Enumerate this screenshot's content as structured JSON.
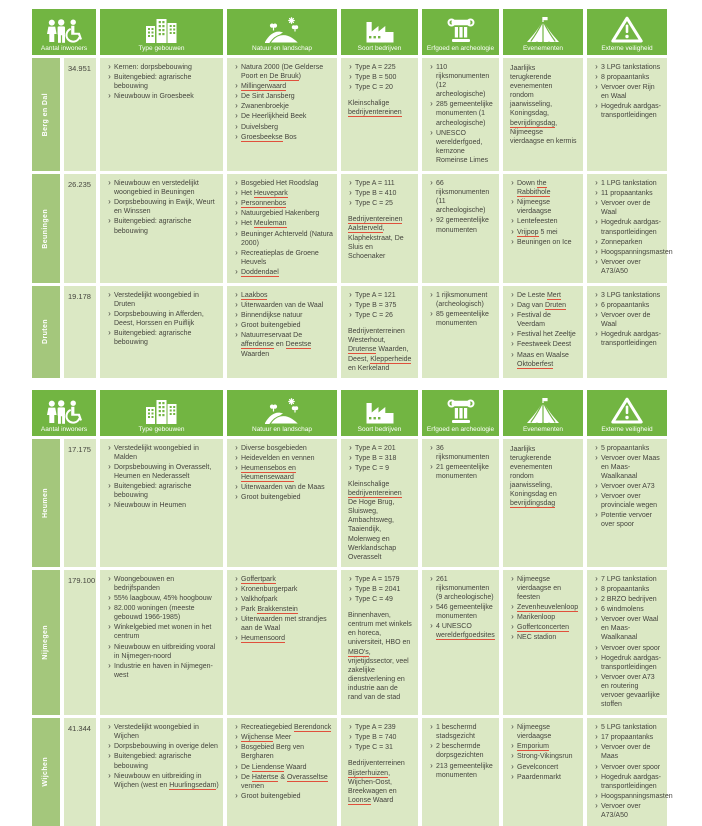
{
  "theme": {
    "header_green": "#72b542",
    "strip_green": "#a4c77c",
    "cell_green": "#dbe8c4",
    "text_color": "#45453e",
    "spellcheck_underline_red": "#e0503c"
  },
  "bullet_char": "›",
  "columns": [
    {
      "id": "aantal-inwoners",
      "label": "Aantal inwoners",
      "icon": "people-icon"
    },
    {
      "id": "type-gebouwen",
      "label": "Type gebouwen",
      "icon": "buildings-icon"
    },
    {
      "id": "natuur-en-landschap",
      "label": "Natuur en landschap",
      "icon": "landscape-icon"
    },
    {
      "id": "soort-bedrijven",
      "label": "Soort bedrijven",
      "icon": "factory-icon"
    },
    {
      "id": "erfgoed-en-archeologie",
      "label": "Erfgoed en archeologie",
      "icon": "column-icon"
    },
    {
      "id": "evenementen",
      "label": "Evenementen",
      "icon": "tent-icon"
    },
    {
      "id": "externe-veiligheid",
      "label": "Externe veiligheid",
      "icon": "warning-icon"
    }
  ],
  "tables": [
    {
      "rows": [
        {
          "municipality": "Berg en Dal",
          "inwoners": "34.951",
          "gebouwen": [
            "Kernen: dorpsbebouwing",
            "Buitengebied: agrarische bebouwing",
            "Nieuwbouw in Groesbeek"
          ],
          "natuur": [
            "Natura 2000 (De Gelderse Poort en [[De Bruuk]])",
            "[[Millingerwaard]]",
            "De Sint Jansberg",
            "Zwanenbroekje",
            "De Heerlijkheid Beek",
            "Duivelsberg",
            "[[Groesbeekse]] Bos"
          ],
          "bedrijven": {
            "types": [
              "Type A = 225",
              "Type B = 500",
              "Type C = 20"
            ],
            "note": "Kleinschalige [[bedrijventereinen]]"
          },
          "erfgoed": [
            "110 rijksmonumenten (12 archeologische)",
            "285 gemeentelijke monumenten (1 archeologische)",
            "UNESCO werelderfgoed, kernzone Romeinse Limes"
          ],
          "evenementen": {
            "text": "Jaarlijks terugkerende evenementen rondom jaarwisseling, Koningsdag, [[bevrijdingsdag]], Nijmeegse vierdaagse en kermis"
          },
          "veiligheid": [
            "3 LPG tankstations",
            "8 propaantanks",
            "Vervoer over Rijn en Waal",
            "Hogedruk aardgas-transportleidingen"
          ]
        },
        {
          "municipality": "Beuningen",
          "inwoners": "26.235",
          "gebouwen": [
            "Nieuwbouw en verstedelijkt woongebied in Beuningen",
            "Dorpsbebouwing in Ewijk, Weurt en Winssen",
            "Buitengebied: agrarische bebouwing"
          ],
          "natuur": [
            "Bosgebied Het Roodslag",
            "Het [[Heuvepark]]",
            "[[Personnenbos]]",
            "Natuurgebied Hakenberg",
            "Het [[Meuleman]]",
            "Beuninger Achterveld (Natura 2000)",
            "Recreatieplas de Groene Heuvels",
            "[[Doddendael]]"
          ],
          "bedrijven": {
            "types": [
              "Type A = 111",
              "Type B = 410",
              "Type C = 25"
            ],
            "note": "[[Bedrijventereinen Aalsterveld]], Klaphekstraat, De Sluis en Schoenaker"
          },
          "erfgoed": [
            "66 rijksmonumenten (11 archeologische)",
            "92 gemeentelijke monumenten"
          ],
          "evenementen": {
            "items": [
              "Down [[the Rabbithole]]",
              "Nijmeegse vierdaagse",
              "Lentefeesten",
              "[[Vrijpop]] 5 mei",
              "Beuningen on Ice"
            ]
          },
          "veiligheid": [
            "1 LPG tankstation",
            "11 propaantanks",
            "Vervoer over de Waal",
            "Hogedruk aardgas-transportleidingen",
            "Zonneparken",
            "Hoogspanningsmasten",
            "Vervoer over A73/A50"
          ]
        },
        {
          "municipality": "Druten",
          "inwoners": "19.178",
          "gebouwen": [
            "Verstedelijkt woongebied in Druten",
            "Dorpsbebouwing in Afferden, Deest, Horssen en Puiflijk",
            "Buitengebied: agrarische bebouwing"
          ],
          "natuur": [
            "[[Laakbos]]",
            "Uiterwaarden van de Waal",
            "Binnendijkse natuur",
            "Groot buitengebied",
            "Natuurreservaat De [[afferdense]] en [[Deestse]] Waarden"
          ],
          "bedrijven": {
            "types": [
              "Type A = 121",
              "Type B = 375",
              "Type C = 26"
            ],
            "note": "Bedrijventerreinen Westerhout, [[Drutense]] Waarden, Deest, [[Klepperheide]] en Kerkeland"
          },
          "erfgoed": [
            "1 rijksmonument (archeologisch)",
            "85 gemeentelijke monumenten"
          ],
          "evenementen": {
            "items": [
              "De Leste [[Mert]]",
              "Dag van [[Druten]]",
              "Festival de Veerdam",
              "Festival het Zeeltje",
              "Feestweek Deest",
              "Maas en Waalse [[Oktoberfest]]"
            ]
          },
          "veiligheid": [
            "3 LPG tankstations",
            "6 propaantanks",
            "Vervoer over de Waal",
            "Hogedruk aardgas-transportleidingen"
          ]
        }
      ]
    },
    {
      "rows": [
        {
          "municipality": "Heumen",
          "inwoners": "17.175",
          "gebouwen": [
            "Verstedelijkt woongebied in Malden",
            "Dorpsbebouwing in Overasselt, Heumen en Nederasselt",
            "Buitengebied: agrarische bebouwing",
            "Nieuwbouw in Heumen"
          ],
          "natuur": [
            "Diverse bosgebieden",
            "Heidevelden en vennen",
            "[[Heumensebos en Heumensewaard]]",
            "Uiterwaarden van de Maas",
            "Groot buitengebied"
          ],
          "bedrijven": {
            "types": [
              "Type A = 201",
              "Type B = 318",
              "Type C = 9"
            ],
            "note": "Kleinschalige [[bedrijventereinen]] De Hoge Brug, Sluisweg, Ambachtsweg, Taaiendijk, Molenweg en Werklandschap Overasselt"
          },
          "erfgoed": [
            "36 rijksmonumenten",
            "21 gemeentelijke monumenten"
          ],
          "evenementen": {
            "text": "Jaarlijks terugkerende evenementen rondom jaarwisseling, Koningsdag en [[bevrijdingsdag]]"
          },
          "veiligheid": [
            "5 propaantanks",
            "Vervoer over Maas en Maas-Waalkanaal",
            "Vervoer over A73",
            "Vervoer over provinciale wegen",
            "Potentie vervoer over spoor"
          ]
        },
        {
          "municipality": "Nijmegen",
          "inwoners": "179.100",
          "gebouwen": [
            "Woongebouwen en bedrijfspanden",
            "55% laagbouw, 45% hoogbouw",
            "82.000 woningen (meeste gebouwd 1966-1985)",
            "Winkelgebied met wonen in het centrum",
            "Nieuwbouw en uitbreiding vooral in Nijmegen-noord",
            "Industrie en haven in Nijmegen-west"
          ],
          "natuur": [
            "[[Goffertpark]]",
            "Kronenburgerpark",
            "Valkhofpark",
            "Park [[Brakkenstein]]",
            "Uiterwaarden met strandjes aan de Waal",
            "[[Heumensoord]]"
          ],
          "bedrijven": {
            "types": [
              "Type A = 1579",
              "Type B = 2041",
              "Type C = 49"
            ],
            "note": "Binnenhaven, centrum met winkels en horeca, universiteit, HBO en [[MBO's]], vrijetijdssector, veel zakelijke dienstverlening en industrie aan de rand van de stad"
          },
          "erfgoed": [
            "261 rijksmonumenten (9 archeologische)",
            "546 gemeentelijke monumenten",
            "4 UNESCO [[werelderfgoedsites]]"
          ],
          "evenementen": {
            "items": [
              "Nijmeegse vierdaagse en feesten",
              "[[Zevenheuvelenloop]]",
              "Marikenloop",
              "[[Goffertconcerten]]",
              "NEC stadion"
            ]
          },
          "veiligheid": [
            "7 LPG tankstation",
            "8 propaantanks",
            "2 BRZO bedrijven",
            "6 windmolens",
            "Vervoer over Waal en Maas-Waalkanaal",
            "Vervoer over spoor",
            "Hogedruk aardgas-transportleidingen",
            "Vervoer over A73 en routering vervoer gevaarlijke stoffen"
          ]
        },
        {
          "municipality": "Wijchen",
          "inwoners": "41.344",
          "gebouwen": [
            "Verstedelijkt woongebied in Wijchen",
            "Dorpsbebouwing in overige delen",
            "Buitengebied: agrarische bebouwing",
            "Nieuwbouw en uitbreiding in Wijchen (west en [[Huurlingsedam]])"
          ],
          "natuur": [
            "Recreatiegebied [[Berendonck]]",
            "[[Wijchense]] Meer",
            "Bosgebied Berg ven Bergharen",
            "De [[Liendense]] Waard",
            "De [[Hatertse]] & [[Overasseltse]] vennen",
            "Groot buitengebied"
          ],
          "bedrijven": {
            "types": [
              "Type A = 239",
              "Type B = 740",
              "Type C = 31"
            ],
            "note": "Bedrijventerreinen [[Bijsterhuizen]], Wijchen-Oost, Breekwagen en [[Loonse]] Waard"
          },
          "erfgoed": [
            "1 beschermd stadsgezicht",
            "2 beschermde dorpsgezichten",
            "213 gemeentelijke monumenten"
          ],
          "evenementen": {
            "items": [
              "Nijmeegse vierdaagse",
              "[[Emporium]]",
              "Strong-Vikingsrun",
              "Gevelconcert",
              "Paardenmarkt"
            ]
          },
          "veiligheid": [
            "5 LPG tankstation",
            "17 propaantanks",
            "Vervoer over de Maas",
            "Vervoer over spoor",
            "Hogedruk aardgas-transportleidingen",
            "Hoogspanningsmasten",
            "Vervoer over A73/A50"
          ]
        }
      ]
    }
  ]
}
